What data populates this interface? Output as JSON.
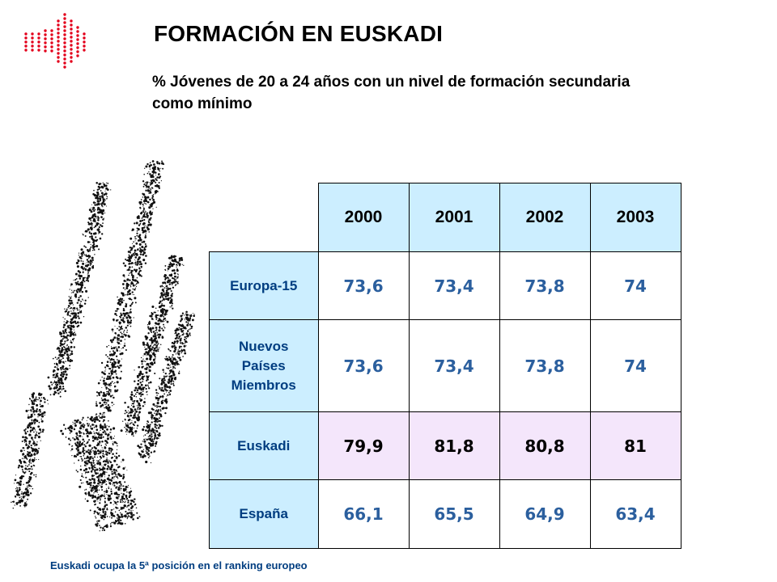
{
  "logo": {
    "icon": "red-dot-arrow-logo",
    "color": "#e3001b"
  },
  "header": {
    "title": "FORMACIÓN EN EUSKADI",
    "subtitle_line1": "% Jóvenes de 20 a 24 años con un nivel de formación secundaria",
    "subtitle_line2": "como mínimo"
  },
  "illustration": {
    "icon": "speckled-hand-silhouette"
  },
  "table": {
    "years": [
      "2000",
      "2001",
      "2002",
      "2003"
    ],
    "rows": [
      {
        "label_lines": [
          "Europa-15"
        ],
        "values": [
          "73,6",
          "73,4",
          "73,8",
          "74"
        ]
      },
      {
        "label_lines": [
          "Nuevos",
          "Países",
          "Miembros"
        ],
        "values": [
          "73,6",
          "73,4",
          "73,8",
          "74"
        ]
      },
      {
        "label_lines": [
          "Euskadi"
        ],
        "values": [
          "79,9",
          "81,8",
          "80,8",
          "81"
        ]
      },
      {
        "label_lines": [
          "España"
        ],
        "values": [
          "66,1",
          "65,5",
          "64,9",
          "63,4"
        ]
      }
    ],
    "colors": {
      "header_bg": "#cceeff",
      "highlight_bg": "#f4e6fb",
      "value_color": "#2b5f9e",
      "label_color": "#003d80"
    }
  },
  "footnote": "Euskadi ocupa la 5ª posición en el ranking europeo"
}
